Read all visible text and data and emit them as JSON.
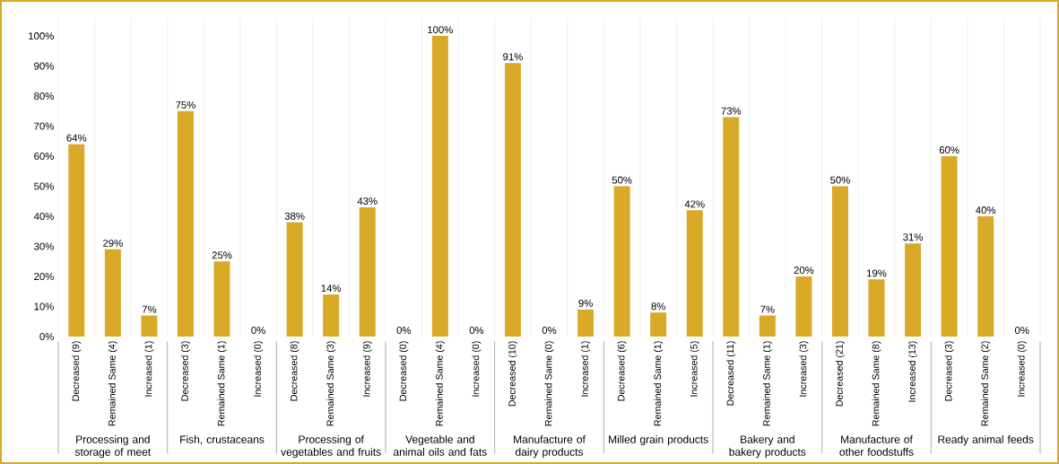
{
  "chart_data": {
    "type": "bar",
    "color": "#d9a928",
    "categories": [
      "Decreased (9)",
      "Remained Same (4)",
      "Increased (1)",
      "Decreased (3)",
      "Remained Same (1)",
      "Increased (0)",
      "Decreased (8)",
      "Remained Same (3)",
      "Increased (9)",
      "Decreased (0)",
      "Remained Same (4)",
      "Increased (0)",
      "Decreased (10)",
      "Remained Same (0)",
      "Increased (1)",
      "Decreased (6)",
      "Remained Same (1)",
      "Increased (5)",
      "Decreased (11)",
      "Remained Same (1)",
      "Increased (3)",
      "Decreased (21)",
      "Remained Same (8)",
      "Increased (13)",
      "Decreased (3)",
      "Remained Same (2)",
      "Increased (0)"
    ],
    "values": [
      64,
      29,
      7,
      75,
      25,
      0,
      38,
      14,
      43,
      0,
      100,
      0,
      91,
      0,
      9,
      50,
      8,
      42,
      73,
      7,
      20,
      50,
      19,
      31,
      60,
      40,
      0
    ],
    "value_labels": [
      "64%",
      "29%",
      "7%",
      "75%",
      "25%",
      "0%",
      "38%",
      "14%",
      "43%",
      "0%",
      "100%",
      "0%",
      "91%",
      "0%",
      "9%",
      "50%",
      "8%",
      "42%",
      "73%",
      "7%",
      "20%",
      "50%",
      "19%",
      "31%",
      "60%",
      "40%",
      "0%"
    ],
    "annotations": [
      "Processing and storage of meet",
      "Fish, crustaceans",
      "Processing of vegetables and fruits",
      "Vegetable and animal oils and fats",
      "Manufacture of dairy products",
      "Milled grain products",
      "Bakery and bakery products",
      "Manufacture of other foodstuffs",
      "Ready animal feeds"
    ],
    "ylim": [
      0,
      106
    ],
    "yticks": [
      {
        "value": 0,
        "label": "0%"
      },
      {
        "value": 10,
        "label": "10%"
      },
      {
        "value": 20,
        "label": "20%"
      },
      {
        "value": 30,
        "label": "30%"
      },
      {
        "value": 40,
        "label": "40%"
      },
      {
        "value": 50,
        "label": "50%"
      },
      {
        "value": 60,
        "label": "60%"
      },
      {
        "value": 70,
        "label": "70%"
      },
      {
        "value": 80,
        "label": "80%"
      },
      {
        "value": 90,
        "label": "90%"
      },
      {
        "value": 100,
        "label": "100%"
      }
    ],
    "grid": "x"
  }
}
